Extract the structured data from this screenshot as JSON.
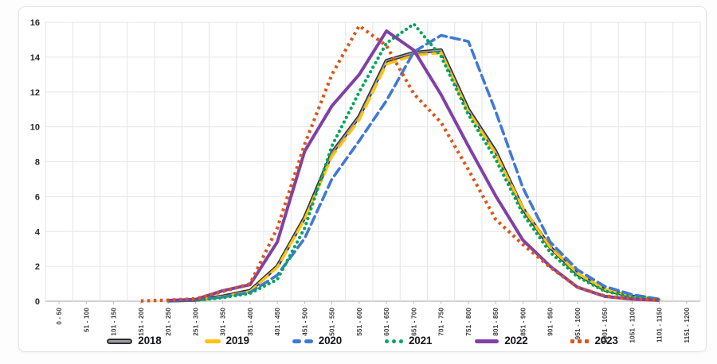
{
  "chart_data": {
    "type": "line",
    "title": "",
    "xlabel": "",
    "ylabel": "",
    "ylim": [
      0,
      16
    ],
    "yticks": [
      0,
      2,
      4,
      6,
      8,
      10,
      12,
      14,
      16
    ],
    "grid": true,
    "legend_position": "bottom",
    "categories": [
      "0 - 50",
      "51 - 100",
      "101 - 150",
      "151 - 200",
      "201 - 250",
      "251 - 300",
      "301 - 350",
      "351 - 400",
      "401 - 450",
      "451 - 500",
      "501 - 550",
      "551 - 600",
      "601 - 650",
      "651 - 700",
      "701 - 750",
      "751 - 800",
      "801 - 850",
      "851 - 900",
      "901 - 950",
      "951 - 1000",
      "1001 - 1050",
      "1051 - 1100",
      "1101 - 1150",
      "1151 - 1200"
    ],
    "series": [
      {
        "name": "2018",
        "style": "outlined",
        "color": "#2e2e33",
        "core_color": "#9c9ca3",
        "width": 4.6,
        "values": [
          null,
          null,
          null,
          null,
          0.03,
          0.07,
          0.28,
          0.6,
          2.0,
          4.8,
          8.5,
          10.6,
          13.8,
          14.25,
          14.4,
          11.0,
          8.6,
          5.3,
          3.1,
          1.55,
          0.65,
          0.28,
          0.08,
          null
        ]
      },
      {
        "name": "2019",
        "style": "dash-long",
        "color": "#ffc20e",
        "width": 3.4,
        "dash": "13 7",
        "values": [
          null,
          null,
          null,
          null,
          0.03,
          0.07,
          0.26,
          0.56,
          1.95,
          4.7,
          8.3,
          10.4,
          13.6,
          14.1,
          14.25,
          10.85,
          8.45,
          5.35,
          3.1,
          1.6,
          0.68,
          0.3,
          0.1,
          null
        ]
      },
      {
        "name": "2020",
        "style": "dash",
        "color": "#4179d2",
        "width": 3.6,
        "dash": "11 6",
        "values": [
          null,
          null,
          null,
          null,
          0.02,
          0.06,
          0.24,
          0.5,
          1.5,
          3.6,
          7.0,
          9.2,
          11.5,
          14.3,
          15.25,
          14.9,
          10.9,
          6.5,
          3.4,
          1.8,
          0.85,
          0.38,
          0.12,
          null
        ]
      },
      {
        "name": "2021",
        "style": "dot-round",
        "color": "#00a55c",
        "width": 4.2,
        "dash": "0.1 6.4",
        "values": [
          null,
          null,
          null,
          null,
          0.02,
          0.05,
          0.2,
          0.45,
          1.25,
          4.2,
          8.9,
          12.0,
          14.8,
          15.9,
          14.05,
          10.7,
          8.15,
          5.0,
          2.8,
          1.4,
          0.58,
          0.24,
          0.08,
          null
        ]
      },
      {
        "name": "2022",
        "style": "solid",
        "color": "#8040a5",
        "width": 4,
        "values": [
          null,
          null,
          null,
          null,
          0.04,
          0.1,
          0.6,
          0.95,
          3.4,
          8.6,
          11.2,
          13.0,
          15.5,
          14.4,
          11.85,
          8.9,
          6.05,
          3.5,
          2.0,
          0.8,
          0.28,
          0.12,
          0.05,
          null
        ]
      },
      {
        "name": "2023",
        "style": "dot-square",
        "color": "#d9571b",
        "width": 4.2,
        "dash": "3.4 4.6",
        "values": [
          null,
          null,
          null,
          0.02,
          0.06,
          0.14,
          0.55,
          1.0,
          4.2,
          9.0,
          13.0,
          15.8,
          14.65,
          11.9,
          10.25,
          7.55,
          4.7,
          3.25,
          1.95,
          0.8,
          0.3,
          0.13,
          0.05,
          null
        ]
      }
    ]
  }
}
